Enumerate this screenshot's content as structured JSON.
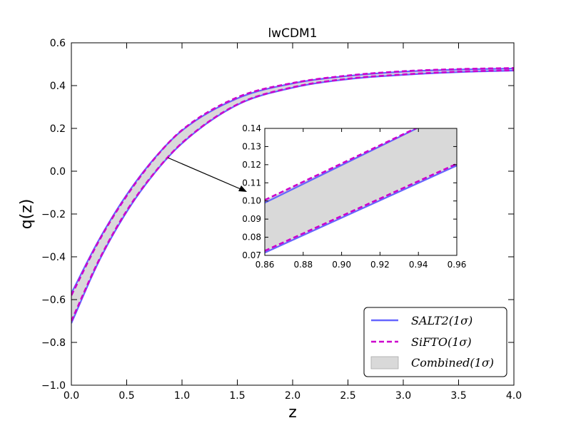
{
  "chart_data": [
    {
      "type": "area",
      "title": "lwCDM1",
      "xlabel": "z",
      "ylabel": "q(z)",
      "xlim": [
        0,
        4
      ],
      "ylim": [
        -1,
        0.6
      ],
      "xticks": [
        0.0,
        0.5,
        1.0,
        1.5,
        2.0,
        2.5,
        3.0,
        3.5,
        4.0
      ],
      "xtick_labels": [
        "0.0",
        "0.5",
        "1.0",
        "1.5",
        "2.0",
        "2.5",
        "3.0",
        "3.5",
        "4.0"
      ],
      "yticks": [
        -1.0,
        -0.8,
        -0.6,
        -0.4,
        -0.2,
        0.0,
        0.2,
        0.4,
        0.6
      ],
      "ytick_labels": [
        "−1.0",
        "−0.8",
        "−0.6",
        "−0.4",
        "−0.2",
        "0.0",
        "0.2",
        "0.4",
        "0.6"
      ],
      "grid": false,
      "legend_position": "bottom-right",
      "colors": {
        "salt2": "#6666ff",
        "sifto": "#cc00cc",
        "combined_fill": "#d9d9d9"
      },
      "x": [
        0.0,
        0.25,
        0.5,
        0.75,
        1.0,
        1.5,
        2.0,
        2.5,
        3.0,
        3.5,
        4.0
      ],
      "series": [
        {
          "name": "SALT2(1σ)",
          "style": "solid",
          "role": "upper",
          "values": [
            -0.57,
            -0.32,
            -0.11,
            0.06,
            0.19,
            0.34,
            0.41,
            0.445,
            0.465,
            0.475,
            0.48
          ]
        },
        {
          "name": "SALT2(1σ)",
          "style": "solid",
          "role": "lower",
          "values": [
            -0.71,
            -0.42,
            -0.19,
            -0.01,
            0.13,
            0.31,
            0.39,
            0.43,
            0.45,
            0.463,
            0.47
          ]
        },
        {
          "name": "SiFTO(1σ)",
          "style": "dashed",
          "role": "upper",
          "values": [
            -0.58,
            -0.325,
            -0.115,
            0.058,
            0.192,
            0.345,
            0.412,
            0.447,
            0.467,
            0.477,
            0.482
          ]
        },
        {
          "name": "SiFTO(1σ)",
          "style": "dashed",
          "role": "lower",
          "values": [
            -0.7,
            -0.415,
            -0.185,
            -0.008,
            0.132,
            0.312,
            0.392,
            0.432,
            0.452,
            0.465,
            0.472
          ]
        }
      ],
      "fill_label": "Combined(1σ)"
    },
    {
      "type": "area",
      "title": "",
      "xlim": [
        0.86,
        0.96
      ],
      "ylim": [
        0.07,
        0.14
      ],
      "xticks": [
        0.86,
        0.88,
        0.9,
        0.92,
        0.94,
        0.96
      ],
      "xtick_labels": [
        "0.86",
        "0.88",
        "0.90",
        "0.92",
        "0.94",
        "0.96"
      ],
      "yticks": [
        0.07,
        0.08,
        0.09,
        0.1,
        0.11,
        0.12,
        0.13,
        0.14
      ],
      "ytick_labels": [
        "0.07",
        "0.08",
        "0.09",
        "0.10",
        "0.11",
        "0.12",
        "0.13",
        "0.14"
      ],
      "x": [
        0.86,
        0.96
      ],
      "series": [
        {
          "name": "SALT2(1σ)",
          "style": "solid",
          "role": "upper",
          "values": [
            0.099,
            0.1508
          ]
        },
        {
          "name": "SALT2(1σ)",
          "style": "solid",
          "role": "lower",
          "values": [
            0.0715,
            0.1195
          ]
        },
        {
          "name": "SiFTO(1σ)",
          "style": "dashed",
          "role": "upper",
          "values": [
            0.1005,
            0.1508
          ]
        },
        {
          "name": "SiFTO(1σ)",
          "style": "dashed",
          "role": "lower",
          "values": [
            0.0725,
            0.1205
          ]
        }
      ]
    }
  ]
}
